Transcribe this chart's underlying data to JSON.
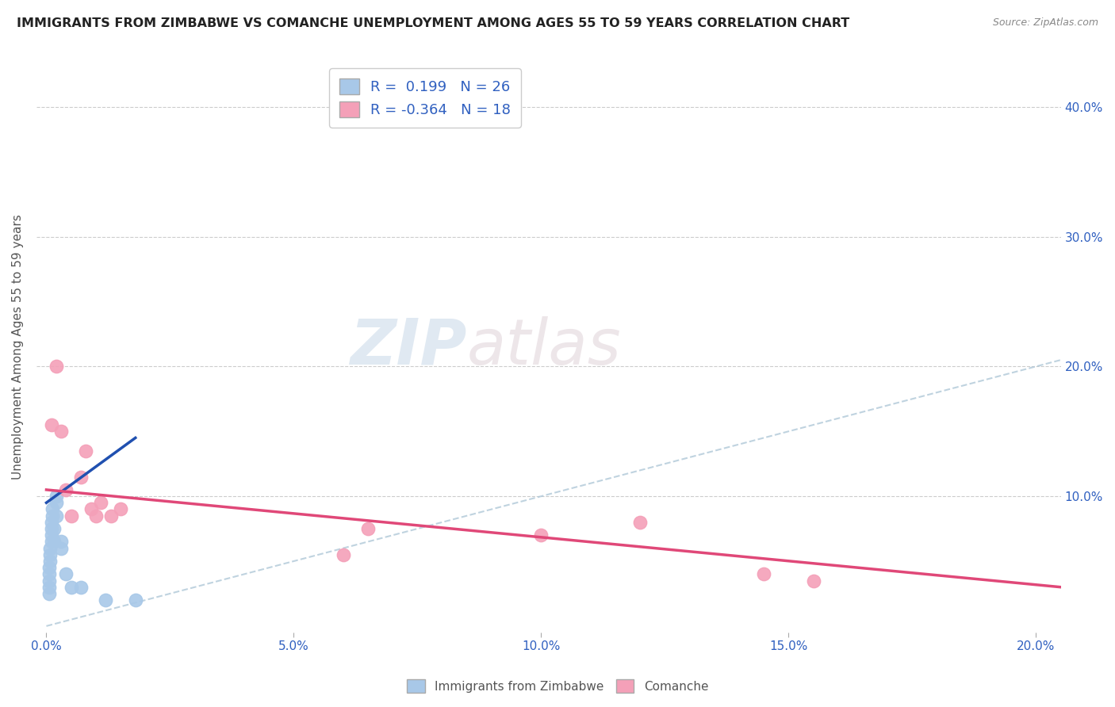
{
  "title": "IMMIGRANTS FROM ZIMBABWE VS COMANCHE UNEMPLOYMENT AMONG AGES 55 TO 59 YEARS CORRELATION CHART",
  "source": "Source: ZipAtlas.com",
  "xlabel_ticks": [
    "0.0%",
    "5.0%",
    "10.0%",
    "15.0%",
    "20.0%"
  ],
  "xlabel_vals": [
    0.0,
    0.05,
    0.1,
    0.15,
    0.2
  ],
  "ylabel_ticks_right": [
    "",
    "10.0%",
    "20.0%",
    "30.0%",
    "40.0%"
  ],
  "ylabel_vals": [
    0.0,
    0.1,
    0.2,
    0.3,
    0.4
  ],
  "xlim": [
    -0.002,
    0.205
  ],
  "ylim": [
    -0.005,
    0.435
  ],
  "legend_label1": "Immigrants from Zimbabwe",
  "legend_label2": "Comanche",
  "r1": 0.199,
  "n1": 26,
  "r2": -0.364,
  "n2": 18,
  "color1": "#a8c8e8",
  "color2": "#f4a0b8",
  "line1_color": "#2050b0",
  "line2_color": "#e04878",
  "diag_color": "#b0c8d8",
  "watermark_zip": "ZIP",
  "watermark_atlas": "atlas",
  "title_fontsize": 11.5,
  "source_fontsize": 9,
  "scatter1_x": [
    0.0005,
    0.0005,
    0.0005,
    0.0005,
    0.0005,
    0.0008,
    0.0008,
    0.0008,
    0.001,
    0.001,
    0.001,
    0.001,
    0.0012,
    0.0012,
    0.0015,
    0.0015,
    0.002,
    0.002,
    0.002,
    0.003,
    0.003,
    0.004,
    0.005,
    0.007,
    0.012,
    0.018
  ],
  "scatter1_y": [
    0.025,
    0.03,
    0.035,
    0.04,
    0.045,
    0.05,
    0.055,
    0.06,
    0.065,
    0.07,
    0.075,
    0.08,
    0.085,
    0.09,
    0.065,
    0.075,
    0.095,
    0.1,
    0.085,
    0.06,
    0.065,
    0.04,
    0.03,
    0.03,
    0.02,
    0.02
  ],
  "scatter2_x": [
    0.001,
    0.002,
    0.003,
    0.004,
    0.005,
    0.007,
    0.008,
    0.009,
    0.01,
    0.011,
    0.013,
    0.015,
    0.06,
    0.065,
    0.1,
    0.12,
    0.145,
    0.155
  ],
  "scatter2_y": [
    0.155,
    0.2,
    0.15,
    0.105,
    0.085,
    0.115,
    0.135,
    0.09,
    0.085,
    0.095,
    0.085,
    0.09,
    0.055,
    0.075,
    0.07,
    0.08,
    0.04,
    0.035
  ],
  "blue_line_x": [
    0.0,
    0.018
  ],
  "blue_line_y": [
    0.095,
    0.145
  ],
  "pink_line_x": [
    0.0,
    0.205
  ],
  "pink_line_y": [
    0.105,
    0.03
  ]
}
